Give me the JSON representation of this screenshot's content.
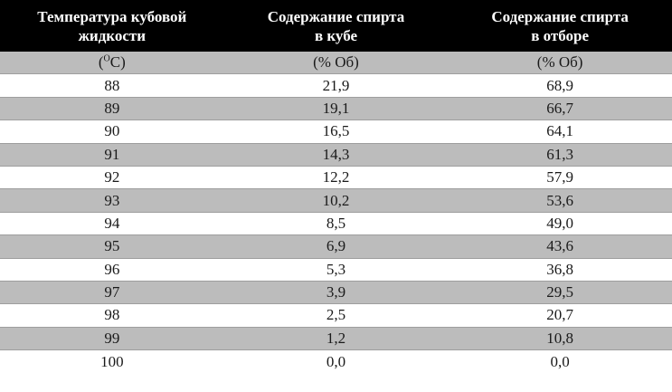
{
  "headers": [
    {
      "line1": "Температура кубовой",
      "line2": "жидкости"
    },
    {
      "line1": "Содержание спирта",
      "line2": "в кубе"
    },
    {
      "line1": "Содержание спирта",
      "line2": "в отборе"
    }
  ],
  "units": {
    "temp_open": "(",
    "temp_sup": "O",
    "temp_close": "С)",
    "cube": "(% Об)",
    "draw": "(% Об)"
  },
  "rows": [
    {
      "temp": "88",
      "cube": "21,9",
      "draw": "68,9"
    },
    {
      "temp": "89",
      "cube": "19,1",
      "draw": "66,7"
    },
    {
      "temp": "90",
      "cube": "16,5",
      "draw": "64,1"
    },
    {
      "temp": "91",
      "cube": "14,3",
      "draw": "61,3"
    },
    {
      "temp": "92",
      "cube": "12,2",
      "draw": "57,9"
    },
    {
      "temp": "93",
      "cube": "10,2",
      "draw": "53,6"
    },
    {
      "temp": "94",
      "cube": "8,5",
      "draw": "49,0"
    },
    {
      "temp": "95",
      "cube": "6,9",
      "draw": "43,6"
    },
    {
      "temp": "96",
      "cube": "5,3",
      "draw": "36,8"
    },
    {
      "temp": "97",
      "cube": "3,9",
      "draw": "29,5"
    },
    {
      "temp": "98",
      "cube": "2,5",
      "draw": "20,7"
    },
    {
      "temp": "99",
      "cube": "1,2",
      "draw": "10,8"
    },
    {
      "temp": "100",
      "cube": "0,0",
      "draw": "0,0"
    }
  ]
}
